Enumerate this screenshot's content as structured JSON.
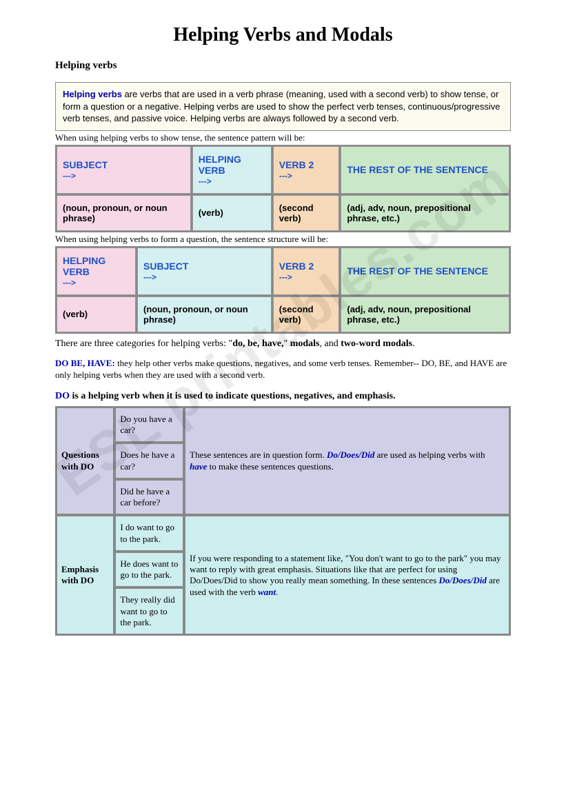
{
  "title": "Helping Verbs and Modals",
  "subtitle": "Helping verbs",
  "intro": {
    "term": "Helping verbs",
    "text": " are verbs that are used in a verb phrase (meaning, used with a second verb) to show tense, or form a question or a negative.  Helping verbs are used to show the perfect verb tenses, continuous/progressive verb tenses, and passive voice.  Helping verbs are always followed by a second verb."
  },
  "caption1": "When using helping verbs to show tense, the sentence pattern will be:",
  "table1": {
    "headers": [
      "SUBJECT",
      "HELPING VERB",
      "VERB 2",
      "THE REST OF THE SENTENCE"
    ],
    "subs": [
      "(noun, pronoun, or noun phrase)",
      "(verb)",
      "(second verb)",
      "(adj, adv, noun, prepositional phrase, etc.)"
    ],
    "colors": [
      "pink",
      "cyan",
      "peach",
      "green"
    ]
  },
  "caption2": "When using helping verbs to form a question, the sentence structure will be:",
  "table2": {
    "headers": [
      "HELPING VERB",
      "SUBJECT",
      "VERB 2",
      "THE REST OF THE SENTENCE"
    ],
    "subs": [
      "(verb)",
      "(noun, pronoun, or noun phrase)",
      "(second verb)",
      "(adj, adv, noun, prepositional phrase, etc.)"
    ],
    "colors": [
      "pink",
      "cyan",
      "peach",
      "green"
    ]
  },
  "categories_pre": "There are three categories for helping verbs: \"",
  "categories_bold1": "do, be, have,",
  "categories_mid": "\" ",
  "categories_bold2": "modals",
  "categories_mid2": ", and ",
  "categories_bold3": "two-word modals",
  "categories_end": ".",
  "dobe": {
    "label": "DO BE, HAVE:",
    "text": "  they help other verbs make questions, negatives, and some verb tenses. Remember--  DO, BE, and HAVE are only helping verbs when they are used with a second verb."
  },
  "do_heading": {
    "do": "DO",
    "rest": " is a helping verb when it is used to indicate questions, negatives, and emphasis."
  },
  "examples": {
    "row1": {
      "label": "Questions with DO",
      "cells": [
        "Do you have a car?",
        "Does he have a car?",
        "Did he have a car before?"
      ],
      "expl_pre": "These sentences are in question form. ",
      "expl_terms": "Do/Does/Did",
      "expl_mid": " are used as helping verbs with ",
      "expl_have": "have",
      "expl_end": " to make these sentences questions."
    },
    "row2": {
      "label": "Emphasis with DO",
      "cells": [
        "I do want to go to the park.",
        "He does want to go to the park.",
        "They really did want to go to the park."
      ],
      "expl_pre": "If you were responding to a statement like, \"You don't want to go to the park\" you may want to reply with great emphasis. Situations like that are perfect for using Do/Does/Did to show you really mean something. In these sentences ",
      "expl_terms": "Do/Does/Did",
      "expl_mid": " are used with the verb ",
      "expl_want": "want",
      "expl_end": "."
    }
  },
  "watermark": "ESL printables.com",
  "arrow": "--->"
}
